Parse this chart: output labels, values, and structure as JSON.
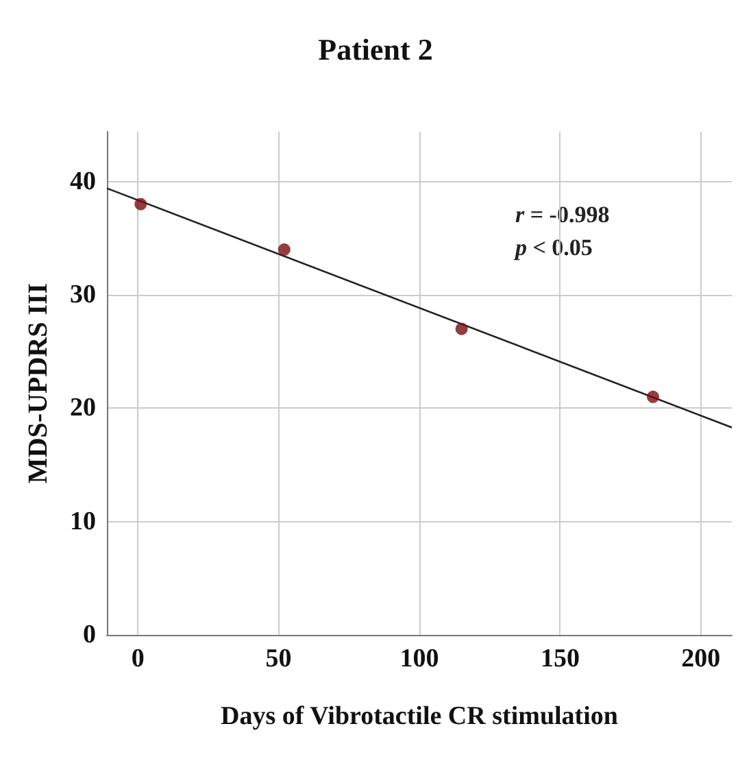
{
  "chart_data": {
    "type": "scatter",
    "title": "Patient 2",
    "xlabel": "Days of Vibrotactile CR stimulation",
    "ylabel": "MDS-UPDRS III",
    "series": [
      {
        "color": "#7b0c0c",
        "marker": "circle",
        "x": [
          1,
          52,
          115,
          183
        ],
        "values": [
          38,
          34,
          27,
          21
        ]
      },
      {
        "type": "line",
        "color": "#222222",
        "marker": "none",
        "x": [
          -11,
          211
        ],
        "values": [
          39.4,
          18.3
        ]
      }
    ],
    "annotations": [
      "r = -0.998",
      "p < 0.05"
    ],
    "xlim": [
      -11,
      211
    ],
    "xticks": [
      0,
      50,
      100,
      150,
      200
    ],
    "ylim": [
      0,
      44.4
    ],
    "yticks": [
      0,
      10,
      20,
      30,
      40
    ],
    "grid": true
  }
}
